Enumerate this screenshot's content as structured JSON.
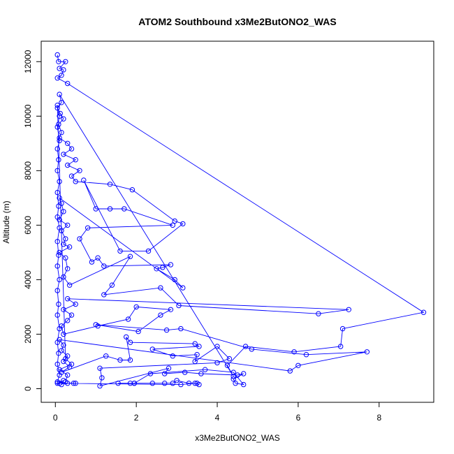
{
  "chart_data": {
    "type": "scatter",
    "title": "ATOM2 Southbound x3Me2ButONO2_WAS",
    "xlabel": "x3Me2ButONO2_WAS",
    "ylabel": "Altitude (m)",
    "xlim": [
      -0.35,
      9.35
    ],
    "ylim": [
      -500,
      12750
    ],
    "x_ticks": [
      0,
      2,
      4,
      6,
      8
    ],
    "y_ticks": [
      0,
      2000,
      4000,
      6000,
      8000,
      10000,
      12000
    ],
    "x_tick_labels": [
      "0",
      "2",
      "4",
      "6",
      "8"
    ],
    "y_tick_labels": [
      "0",
      "2000",
      "4000",
      "6000",
      "8000",
      "10000",
      "12000"
    ],
    "series_color": "#0000ff",
    "marker": "open-circle",
    "connected": true,
    "points": [
      [
        0.05,
        12250
      ],
      [
        0.08,
        12000
      ],
      [
        0.25,
        12000
      ],
      [
        0.1,
        11750
      ],
      [
        0.2,
        11700
      ],
      [
        0.15,
        11500
      ],
      [
        0.05,
        11400
      ],
      [
        0.3,
        11200
      ],
      [
        9.1,
        2800
      ],
      [
        7.1,
        2200
      ],
      [
        7.05,
        1550
      ],
      [
        5.9,
        1350
      ],
      [
        4.7,
        1550
      ],
      [
        4.25,
        850
      ],
      [
        4.4,
        450
      ],
      [
        0.1,
        10800
      ],
      [
        0.15,
        10500
      ],
      [
        0.05,
        10300
      ],
      [
        0.12,
        10100
      ],
      [
        0.2,
        9900
      ],
      [
        0.08,
        9700
      ],
      [
        0.15,
        9400
      ],
      [
        0.1,
        9200
      ],
      [
        0.3,
        9000
      ],
      [
        0.4,
        8800
      ],
      [
        0.2,
        8600
      ],
      [
        0.5,
        8400
      ],
      [
        0.3,
        8200
      ],
      [
        0.6,
        8000
      ],
      [
        0.4,
        7800
      ],
      [
        0.5,
        7600
      ],
      [
        1.35,
        7500
      ],
      [
        1.9,
        7300
      ],
      [
        2.95,
        6150
      ],
      [
        3.15,
        6050
      ],
      [
        2.3,
        5050
      ],
      [
        1.6,
        5050
      ],
      [
        0.7,
        7650
      ],
      [
        1.0,
        6600
      ],
      [
        1.35,
        6600
      ],
      [
        1.7,
        6600
      ],
      [
        2.9,
        6000
      ],
      [
        0.8,
        5900
      ],
      [
        0.6,
        5500
      ],
      [
        0.9,
        4650
      ],
      [
        1.05,
        4800
      ],
      [
        1.2,
        4500
      ],
      [
        2.85,
        4550
      ],
      [
        2.65,
        4450
      ],
      [
        2.5,
        4400
      ],
      [
        2.95,
        4000
      ],
      [
        3.15,
        3700
      ],
      [
        0.1,
        7000
      ],
      [
        0.15,
        6800
      ],
      [
        0.2,
        6500
      ],
      [
        0.1,
        6200
      ],
      [
        0.3,
        6000
      ],
      [
        0.15,
        5800
      ],
      [
        0.25,
        5500
      ],
      [
        0.2,
        5300
      ],
      [
        0.35,
        5200
      ],
      [
        0.1,
        5000
      ],
      [
        0.25,
        4800
      ],
      [
        0.3,
        4400
      ],
      [
        0.2,
        4100
      ],
      [
        0.35,
        3800
      ],
      [
        1.85,
        4850
      ],
      [
        1.4,
        3800
      ],
      [
        1.2,
        3450
      ],
      [
        2.6,
        3700
      ],
      [
        3.05,
        3050
      ],
      [
        6.5,
        2750
      ],
      [
        7.25,
        2900
      ],
      [
        0.3,
        3300
      ],
      [
        0.5,
        3100
      ],
      [
        0.2,
        2900
      ],
      [
        0.4,
        2700
      ],
      [
        0.3,
        2500
      ],
      [
        0.15,
        2300
      ],
      [
        0.2,
        2000
      ],
      [
        1.05,
        2300
      ],
      [
        1.8,
        2550
      ],
      [
        2.0,
        3000
      ],
      [
        2.85,
        2900
      ],
      [
        2.6,
        2700
      ],
      [
        2.05,
        2100
      ],
      [
        1.0,
        2350
      ],
      [
        2.75,
        2150
      ],
      [
        3.1,
        2200
      ],
      [
        4.85,
        1450
      ],
      [
        6.2,
        1250
      ],
      [
        7.7,
        1350
      ],
      [
        6.0,
        850
      ],
      [
        5.8,
        650
      ],
      [
        0.1,
        1800
      ],
      [
        0.2,
        1600
      ],
      [
        0.15,
        1400
      ],
      [
        0.3,
        1200
      ],
      [
        0.2,
        1000
      ],
      [
        0.35,
        800
      ],
      [
        0.15,
        600
      ],
      [
        1.25,
        1200
      ],
      [
        1.6,
        1050
      ],
      [
        1.85,
        1050
      ],
      [
        1.75,
        1900
      ],
      [
        1.85,
        1700
      ],
      [
        3.45,
        1650
      ],
      [
        3.55,
        1550
      ],
      [
        2.4,
        1450
      ],
      [
        2.9,
        1200
      ],
      [
        3.5,
        1250
      ],
      [
        3.45,
        1000
      ],
      [
        4.0,
        1550
      ],
      [
        4.3,
        1100
      ],
      [
        4.0,
        950
      ],
      [
        1.1,
        750
      ],
      [
        1.15,
        400
      ],
      [
        1.1,
        100
      ],
      [
        2.8,
        750
      ],
      [
        2.7,
        550
      ],
      [
        3.2,
        600
      ],
      [
        3.6,
        550
      ],
      [
        4.5,
        500
      ],
      [
        4.65,
        550
      ],
      [
        4.4,
        350
      ],
      [
        4.45,
        200
      ],
      [
        4.65,
        150
      ],
      [
        4.4,
        600
      ],
      [
        3.7,
        700
      ],
      [
        2.35,
        550
      ],
      [
        1.95,
        200
      ],
      [
        1.55,
        200
      ],
      [
        1.85,
        200
      ],
      [
        1.95,
        200
      ],
      [
        2.4,
        200
      ],
      [
        2.7,
        200
      ],
      [
        2.9,
        200
      ],
      [
        3.0,
        300
      ],
      [
        3.3,
        200
      ],
      [
        3.5,
        200
      ],
      [
        3.55,
        150
      ],
      [
        3.45,
        200
      ],
      [
        3.1,
        150
      ],
      [
        0.1,
        200
      ],
      [
        0.3,
        200
      ],
      [
        0.45,
        200
      ],
      [
        0.5,
        200
      ],
      [
        0.05,
        200
      ],
      [
        0.2,
        300
      ],
      [
        0.15,
        150
      ],
      [
        0.25,
        250
      ],
      [
        0.3,
        500
      ],
      [
        0.1,
        700
      ],
      [
        0.4,
        900
      ],
      [
        0.25,
        1100
      ],
      [
        0.05,
        10400
      ],
      [
        0.1,
        10000
      ],
      [
        0.05,
        9600
      ],
      [
        0.1,
        9100
      ],
      [
        0.05,
        8800
      ],
      [
        0.08,
        8400
      ],
      [
        0.05,
        8000
      ],
      [
        0.1,
        7600
      ],
      [
        0.05,
        7200
      ],
      [
        0.08,
        6700
      ],
      [
        0.05,
        6300
      ],
      [
        0.1,
        5900
      ],
      [
        0.05,
        5400
      ],
      [
        0.08,
        4900
      ],
      [
        0.05,
        4500
      ],
      [
        0.1,
        4000
      ],
      [
        0.05,
        3600
      ],
      [
        0.08,
        3100
      ],
      [
        0.05,
        2700
      ],
      [
        0.1,
        2200
      ],
      [
        0.05,
        1700
      ],
      [
        0.08,
        1300
      ],
      [
        0.05,
        900
      ],
      [
        0.1,
        500
      ],
      [
        0.05,
        250
      ]
    ]
  }
}
